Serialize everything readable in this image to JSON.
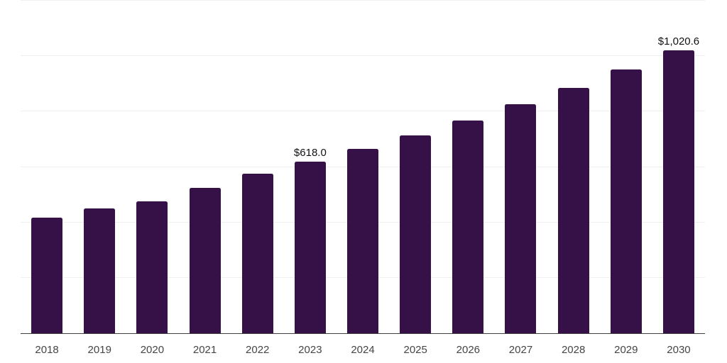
{
  "chart_data": {
    "type": "bar",
    "title": "",
    "xlabel": "",
    "ylabel": "",
    "categories": [
      "2018",
      "2019",
      "2020",
      "2021",
      "2022",
      "2023",
      "2024",
      "2025",
      "2026",
      "2027",
      "2028",
      "2029",
      "2030"
    ],
    "values": [
      417,
      448,
      474,
      523,
      575,
      618.0,
      664,
      713,
      767,
      824,
      885,
      951,
      1020.6
    ],
    "data_labels": {
      "2023": "$618.0",
      "2030": "$1,020.6"
    },
    "ylim": [
      0,
      1200
    ],
    "grid_interval": 200,
    "grid": "horizontal-only",
    "legend": "none",
    "y_tick_labels": "none",
    "colors": {
      "bar": "#351148",
      "gridline": "#efefef",
      "axis_line": "#3f3f3f",
      "data_label_text": "#111111",
      "x_tick_label_text": "#454545",
      "background": "#ffffff"
    }
  }
}
